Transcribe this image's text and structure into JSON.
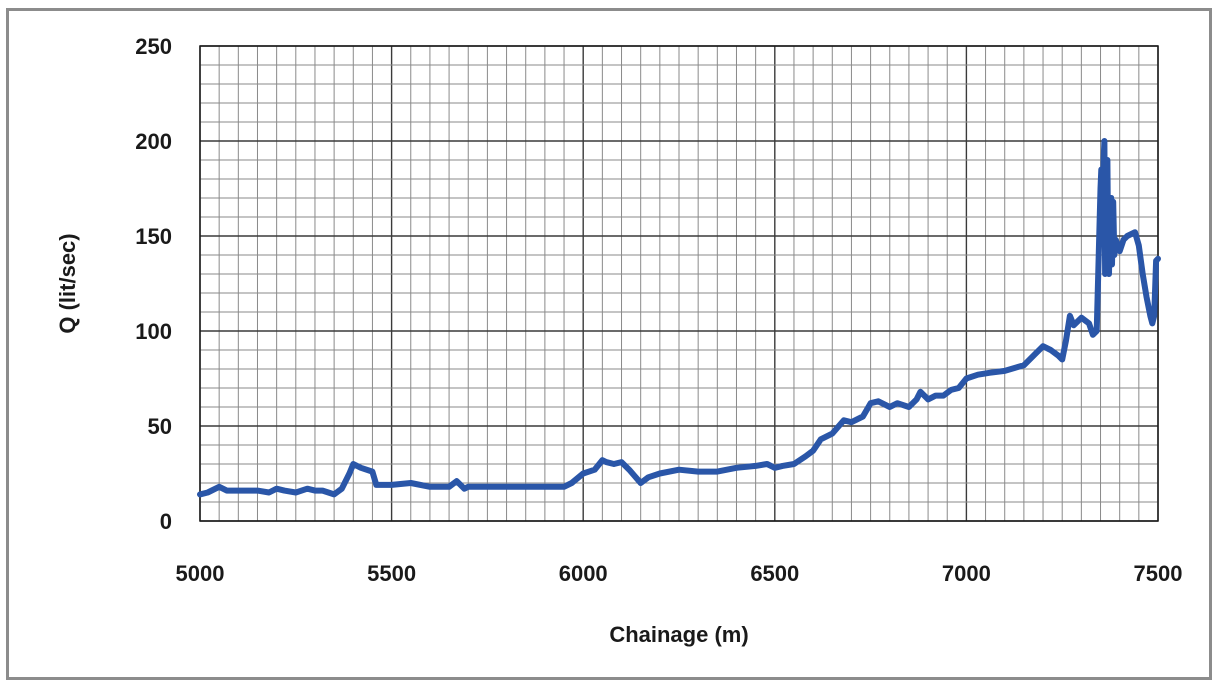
{
  "chart_data": {
    "type": "line",
    "title": "",
    "xlabel": "Chainage (m)",
    "ylabel": "Q (lit/sec)",
    "xlim": [
      5000,
      7500
    ],
    "ylim": [
      0,
      250
    ],
    "x_ticks": [
      "5000",
      "5500",
      "6000",
      "6500",
      "7000",
      "7500"
    ],
    "y_ticks": [
      "0",
      "50",
      "100",
      "150",
      "200",
      "250"
    ],
    "grid": true,
    "legend": "none",
    "line_color": "#2a56a8",
    "series": [
      {
        "x": [
          5000,
          5020,
          5050,
          5070,
          5100,
          5150,
          5180,
          5200,
          5220,
          5250,
          5280,
          5300,
          5320,
          5350,
          5370,
          5390,
          5400,
          5420,
          5450,
          5460,
          5500,
          5550,
          5600,
          5650,
          5670,
          5690,
          5700,
          5750,
          5800,
          5850,
          5900,
          5950,
          5970,
          6000,
          6030,
          6050,
          6060,
          6080,
          6100,
          6120,
          6150,
          6170,
          6200,
          6250,
          6300,
          6350,
          6400,
          6450,
          6480,
          6500,
          6520,
          6550,
          6580,
          6600,
          6620,
          6650,
          6680,
          6700,
          6730,
          6750,
          6770,
          6800,
          6820,
          6850,
          6870,
          6880,
          6900,
          6920,
          6940,
          6960,
          6980,
          7000,
          7030,
          7060,
          7100,
          7150,
          7180,
          7200,
          7220,
          7240,
          7250,
          7260,
          7270,
          7280,
          7300,
          7320,
          7330,
          7340,
          7350,
          7352,
          7355,
          7358,
          7360,
          7362,
          7365,
          7368,
          7370,
          7372,
          7375,
          7378,
          7380,
          7383,
          7386,
          7390,
          7395,
          7400,
          7410,
          7420,
          7440,
          7450,
          7460,
          7470,
          7480,
          7485,
          7490,
          7495,
          7500
        ],
        "y": [
          14,
          15,
          18,
          16,
          16,
          16,
          15,
          17,
          16,
          15,
          17,
          16,
          16,
          14,
          17,
          25,
          30,
          28,
          26,
          19,
          19,
          20,
          18,
          18,
          21,
          17,
          18,
          18,
          18,
          18,
          18,
          18,
          20,
          25,
          27,
          32,
          31,
          30,
          31,
          27,
          20,
          23,
          25,
          27,
          26,
          26,
          28,
          29,
          30,
          28,
          29,
          30,
          34,
          37,
          43,
          46,
          53,
          52,
          55,
          62,
          63,
          60,
          62,
          60,
          64,
          68,
          64,
          66,
          66,
          69,
          70,
          75,
          77,
          78,
          79,
          82,
          88,
          92,
          90,
          87,
          85,
          95,
          108,
          103,
          107,
          104,
          98,
          100,
          175,
          185,
          150,
          190,
          200,
          130,
          175,
          190,
          140,
          130,
          165,
          170,
          135,
          168,
          140,
          148,
          145,
          142,
          148,
          150,
          152,
          145,
          130,
          118,
          108,
          104,
          108,
          137,
          138
        ]
      }
    ]
  }
}
